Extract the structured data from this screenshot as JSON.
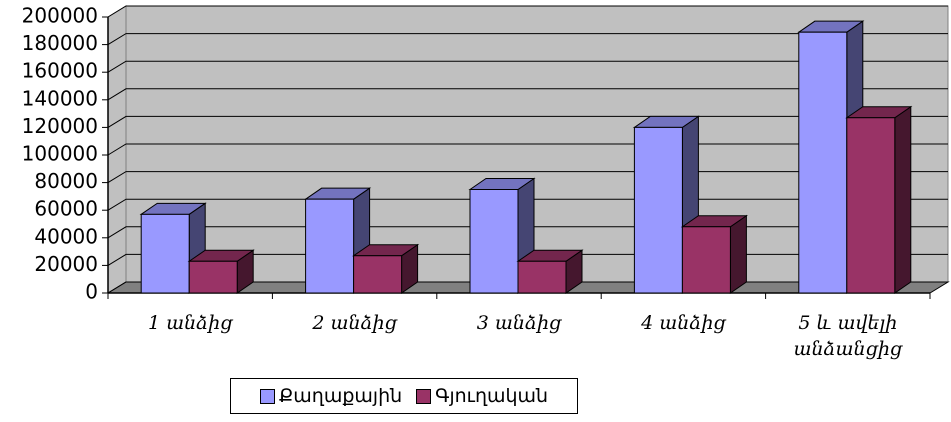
{
  "chart_data": {
    "type": "bar3d",
    "categories": [
      "1 անձից",
      "2 անձից",
      "3 անձից",
      "4 անձից",
      "5 և ավելի անձանցից"
    ],
    "series": [
      {
        "name": "Քաղաքային",
        "color": "#9999ff",
        "values": [
          57000,
          68000,
          75000,
          120000,
          189000
        ]
      },
      {
        "name": "Գյուղական",
        "color": "#993366",
        "values": [
          23000,
          27000,
          23000,
          48000,
          127000
        ]
      }
    ],
    "ylim": [
      0,
      200000
    ],
    "yticks": [
      0,
      20000,
      40000,
      60000,
      80000,
      100000,
      120000,
      140000,
      160000,
      180000,
      200000
    ],
    "grid": true
  }
}
